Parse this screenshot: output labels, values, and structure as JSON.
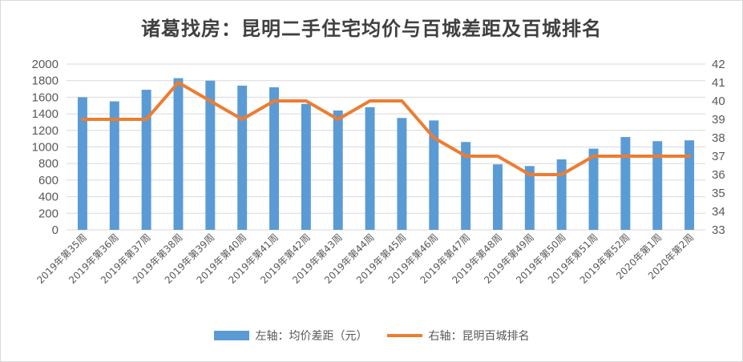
{
  "title": "诸葛找房：昆明二手住宅均价与百城差距及百城排名",
  "colors": {
    "bar": "#5b9bd5",
    "line": "#ed7d31",
    "grid": "#d9d9d9",
    "text": "#595959"
  },
  "legend": {
    "bar_label": "左轴：均价差距（元）",
    "line_label": "右轴：昆明百城排名"
  },
  "chart_data": {
    "type": "bar",
    "title": "诸葛找房：昆明二手住宅均价与百城差距及百城排名",
    "categories": [
      "2019年第35周",
      "2019年第36周",
      "2019年第37周",
      "2019年第38周",
      "2019年第39周",
      "2019年第40周",
      "2019年第41周",
      "2019年第42周",
      "2019年第43周",
      "2019年第44周",
      "2019年第45周",
      "2019年第46周",
      "2019年第47周",
      "2019年第48周",
      "2019年第49周",
      "2019年第50周",
      "2019年第51周",
      "2019年第52周",
      "2020年第1周",
      "2020年第2周"
    ],
    "series": [
      {
        "name": "左轴：均价差距（元）",
        "type": "bar",
        "axis": "left",
        "values": [
          1600,
          1550,
          1690,
          1830,
          1800,
          1740,
          1720,
          1520,
          1440,
          1480,
          1350,
          1320,
          1060,
          790,
          770,
          850,
          980,
          1120,
          1070,
          1080
        ]
      },
      {
        "name": "右轴：昆明百城排名",
        "type": "line",
        "axis": "right",
        "values": [
          39,
          39,
          39,
          41,
          40,
          39,
          40,
          40,
          39,
          40,
          40,
          38,
          37,
          37,
          36,
          36,
          37,
          37,
          37,
          37
        ]
      }
    ],
    "y_left": {
      "min": 0,
      "max": 2000,
      "step": 200,
      "ticks": [
        "0",
        "200",
        "400",
        "600",
        "800",
        "1000",
        "1200",
        "1400",
        "1600",
        "1800",
        "2000"
      ]
    },
    "y_right": {
      "min": 33,
      "max": 42,
      "step": 1,
      "ticks": [
        "33",
        "34",
        "35",
        "36",
        "37",
        "38",
        "39",
        "40",
        "41",
        "42"
      ]
    },
    "grid": true,
    "legend_position": "bottom"
  }
}
